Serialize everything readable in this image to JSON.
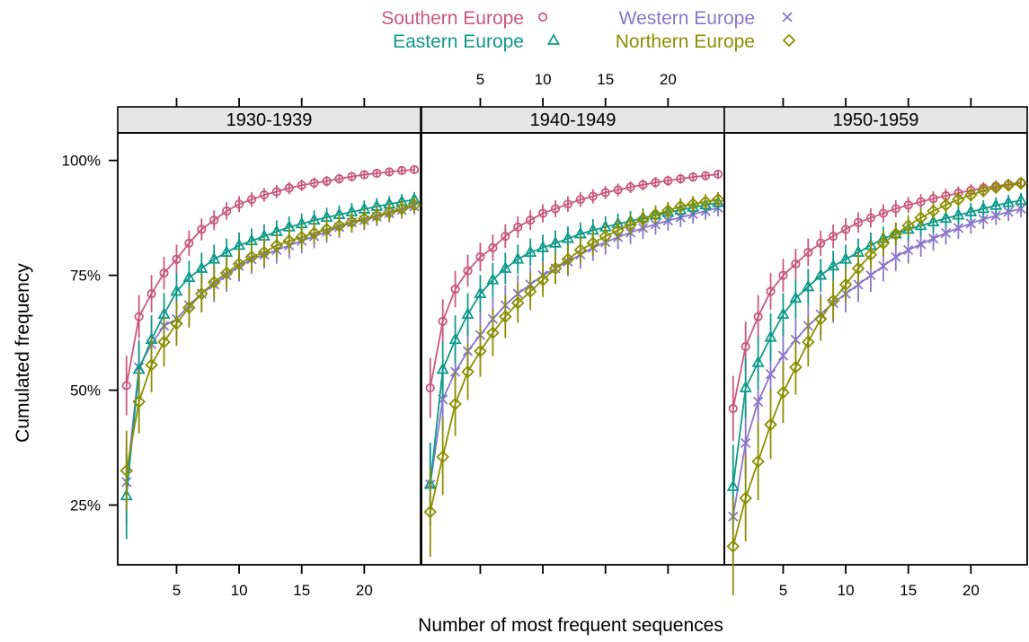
{
  "chart_data": {
    "type": "line",
    "xlabel": "Number of most frequent sequences",
    "ylabel": "Cumulated frequency",
    "xlim": [
      0.3,
      24.5
    ],
    "ylim": [
      0.12,
      1.06
    ],
    "x_ticks": [
      5,
      10,
      15,
      20
    ],
    "y_ticks": [
      {
        "value": 0.25,
        "label": "25%"
      },
      {
        "value": 0.5,
        "label": "50%"
      },
      {
        "value": 0.75,
        "label": "75%"
      },
      {
        "value": 1.0,
        "label": "100%"
      }
    ],
    "legend_position": "top",
    "legend": [
      {
        "name": "Southern Europe",
        "symbol": "circle",
        "color": "#c8597c"
      },
      {
        "name": "Western Europe",
        "symbol": "cross",
        "color": "#8877c8"
      },
      {
        "name": "Eastern Europe",
        "symbol": "triangle",
        "color": "#0f9a8a"
      },
      {
        "name": "Northern Europe",
        "symbol": "diamond",
        "color": "#8a9000"
      }
    ],
    "x": [
      1,
      2,
      3,
      4,
      5,
      6,
      7,
      8,
      9,
      10,
      11,
      12,
      13,
      14,
      15,
      16,
      17,
      18,
      19,
      20,
      21,
      22,
      23,
      24
    ],
    "panels": [
      {
        "title": "1930-1939",
        "series": [
          {
            "name": "Southern Europe",
            "values": [
              0.51,
              0.66,
              0.71,
              0.755,
              0.785,
              0.82,
              0.85,
              0.87,
              0.89,
              0.905,
              0.915,
              0.925,
              0.932,
              0.94,
              0.946,
              0.951,
              0.955,
              0.96,
              0.965,
              0.969,
              0.972,
              0.975,
              0.978,
              0.98
            ]
          },
          {
            "name": "Western Europe",
            "values": [
              0.3,
              0.55,
              0.6,
              0.64,
              0.655,
              0.685,
              0.71,
              0.73,
              0.75,
              0.77,
              0.785,
              0.795,
              0.805,
              0.815,
              0.825,
              0.835,
              0.845,
              0.855,
              0.865,
              0.87,
              0.878,
              0.885,
              0.892,
              0.9
            ]
          },
          {
            "name": "Eastern Europe",
            "values": [
              0.27,
              0.545,
              0.61,
              0.665,
              0.715,
              0.745,
              0.765,
              0.785,
              0.8,
              0.815,
              0.825,
              0.835,
              0.845,
              0.855,
              0.862,
              0.87,
              0.876,
              0.882,
              0.888,
              0.894,
              0.9,
              0.905,
              0.91,
              0.915
            ]
          },
          {
            "name": "Northern Europe",
            "values": [
              0.325,
              0.475,
              0.555,
              0.605,
              0.645,
              0.68,
              0.71,
              0.735,
              0.755,
              0.775,
              0.79,
              0.8,
              0.815,
              0.825,
              0.833,
              0.842,
              0.85,
              0.858,
              0.866,
              0.873,
              0.88,
              0.887,
              0.895,
              0.903
            ]
          }
        ]
      },
      {
        "title": "1940-1949",
        "series": [
          {
            "name": "Southern Europe",
            "values": [
              0.505,
              0.65,
              0.72,
              0.76,
              0.79,
              0.81,
              0.835,
              0.855,
              0.87,
              0.885,
              0.895,
              0.905,
              0.915,
              0.922,
              0.93,
              0.936,
              0.942,
              0.947,
              0.952,
              0.956,
              0.96,
              0.964,
              0.967,
              0.97
            ]
          },
          {
            "name": "Western Europe",
            "values": [
              0.295,
              0.48,
              0.54,
              0.585,
              0.62,
              0.655,
              0.685,
              0.71,
              0.73,
              0.75,
              0.765,
              0.78,
              0.795,
              0.81,
              0.822,
              0.833,
              0.843,
              0.853,
              0.861,
              0.869,
              0.876,
              0.883,
              0.89,
              0.897
            ]
          },
          {
            "name": "Eastern Europe",
            "values": [
              0.295,
              0.545,
              0.61,
              0.665,
              0.71,
              0.74,
              0.765,
              0.785,
              0.8,
              0.81,
              0.82,
              0.83,
              0.84,
              0.848,
              0.855,
              0.862,
              0.868,
              0.875,
              0.881,
              0.887,
              0.892,
              0.898,
              0.903,
              0.908
            ]
          },
          {
            "name": "Northern Europe",
            "values": [
              0.235,
              0.355,
              0.47,
              0.54,
              0.585,
              0.625,
              0.66,
              0.69,
              0.715,
              0.74,
              0.765,
              0.785,
              0.805,
              0.82,
              0.835,
              0.848,
              0.86,
              0.872,
              0.882,
              0.891,
              0.9,
              0.905,
              0.91,
              0.915
            ]
          }
        ]
      },
      {
        "title": "1950-1959",
        "series": [
          {
            "name": "Southern Europe",
            "values": [
              0.46,
              0.595,
              0.66,
              0.715,
              0.75,
              0.775,
              0.8,
              0.82,
              0.835,
              0.85,
              0.865,
              0.875,
              0.885,
              0.895,
              0.903,
              0.91,
              0.917,
              0.923,
              0.929,
              0.935,
              0.94,
              0.944,
              0.948,
              0.952
            ]
          },
          {
            "name": "Western Europe",
            "values": [
              0.225,
              0.385,
              0.475,
              0.535,
              0.575,
              0.61,
              0.64,
              0.665,
              0.69,
              0.71,
              0.73,
              0.75,
              0.77,
              0.79,
              0.805,
              0.818,
              0.83,
              0.842,
              0.853,
              0.863,
              0.872,
              0.88,
              0.888,
              0.895
            ]
          },
          {
            "name": "Eastern Europe",
            "values": [
              0.29,
              0.505,
              0.56,
              0.615,
              0.665,
              0.7,
              0.725,
              0.75,
              0.77,
              0.785,
              0.8,
              0.815,
              0.83,
              0.84,
              0.85,
              0.858,
              0.866,
              0.874,
              0.881,
              0.888,
              0.895,
              0.902,
              0.908,
              0.913
            ]
          },
          {
            "name": "Northern Europe",
            "values": [
              0.16,
              0.265,
              0.345,
              0.425,
              0.495,
              0.55,
              0.605,
              0.655,
              0.695,
              0.73,
              0.765,
              0.795,
              0.82,
              0.84,
              0.858,
              0.875,
              0.89,
              0.903,
              0.915,
              0.925,
              0.934,
              0.941,
              0.946,
              0.95
            ]
          }
        ]
      }
    ]
  }
}
